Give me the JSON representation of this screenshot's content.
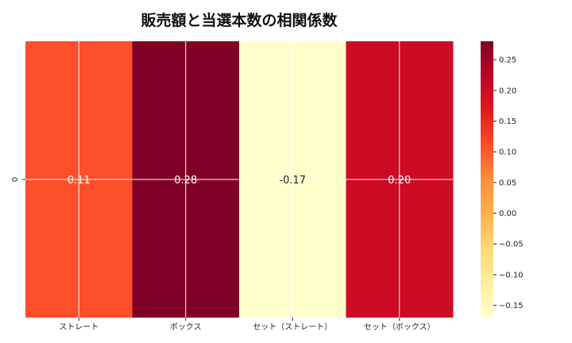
{
  "chart_data": {
    "type": "heatmap",
    "title": "販売額と当選本数の相関係数",
    "x_categories": [
      "ストレート",
      "ボックス",
      "セット（ストレート）",
      "セット（ボックス）"
    ],
    "y_categories": [
      "0"
    ],
    "values": [
      [
        0.11,
        0.28,
        -0.17,
        0.2
      ]
    ],
    "value_labels": [
      "0.11",
      "0.28",
      "-0.17",
      "0.20"
    ],
    "colormap": "YlOrRd",
    "colorbar": {
      "range": [
        -0.17,
        0.28
      ],
      "ticks": [
        0.25,
        0.2,
        0.15,
        0.1,
        0.05,
        0.0,
        -0.05,
        -0.1,
        -0.15
      ],
      "tick_labels": [
        "0.25",
        "0.20",
        "0.15",
        "0.10",
        "0.05",
        "0.00",
        "−0.05",
        "−0.10",
        "−0.15"
      ]
    },
    "grid": true
  }
}
